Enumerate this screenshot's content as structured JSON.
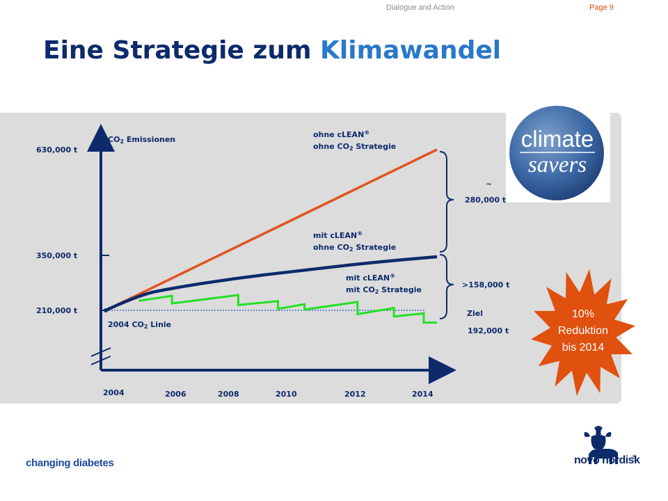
{
  "header": {
    "doc_title": "Dialogue and Action",
    "page": "Page 9"
  },
  "title": {
    "main": "Eine Strategie zum",
    "highlight": "Klimawandel"
  },
  "chart_data": {
    "type": "line",
    "ylabel": "CO2 Emissionen",
    "y_tick_labels": [
      "630,000  t",
      "350,000  t",
      "210,000  t"
    ],
    "x_tick_labels": [
      "2004",
      "2006",
      "2008",
      "2010",
      "2012",
      "2014"
    ],
    "baseline_label": "2004 CO2 Linie",
    "series": [
      {
        "name": "ohne cLEAN® ohne CO2 Strategie",
        "color": "#e0541f",
        "x": [
          2004,
          2014
        ],
        "y": [
          210000,
          630000
        ]
      },
      {
        "name": "mit cLEAN® ohne CO2 Strategie",
        "color": "#0d2a6b",
        "x": [
          2004,
          2005,
          2006,
          2008,
          2010,
          2012,
          2014
        ],
        "y": [
          210000,
          250000,
          268000,
          295000,
          315000,
          335000,
          350000
        ]
      },
      {
        "name": "mit cLEAN® mit CO2 Strategie",
        "color": "#22e022",
        "x": [
          2005,
          2006,
          2006,
          2008,
          2008,
          2009.2,
          2009.2,
          2010,
          2010,
          2011.6,
          2011.6,
          2012.7,
          2012.7,
          2013.6,
          2013.6,
          2014
        ],
        "y": [
          235000,
          248000,
          228000,
          250000,
          224000,
          234000,
          214000,
          226000,
          212000,
          232000,
          200000,
          216000,
          194000,
          202000,
          178000,
          178000
        ]
      }
    ],
    "annotations": {
      "gap_top": "~",
      "gap_top_value": "280,000  t",
      "gap_bottom_value": ">158,000  t",
      "goal_label": "Ziel",
      "goal_value": "192,000  t"
    }
  },
  "series_labels": {
    "orange_line1": "ohne cLEAN®",
    "orange_line2": "ohne CO2 Strategie",
    "navy_line1": "mit cLEAN®",
    "navy_line2": "ohne CO2 Strategie",
    "green_line1": "mit cLEAN®",
    "green_line2": "mit CO2 Strategie"
  },
  "burst": {
    "line1": "10%",
    "line2": "Reduktion",
    "line3": "bis 2014",
    "color": "#e0500f"
  },
  "logo": {
    "line1": "climate",
    "line2": "savers"
  },
  "footer": {
    "tagline": "changing diabetes",
    "brand": "novo nordisk",
    "reg": "®"
  },
  "colors": {
    "navy": "#0d2a6b",
    "accent": "#2a78c8",
    "orange": "#e0541f",
    "green": "#22e022",
    "panel": "#dcdcdc"
  }
}
